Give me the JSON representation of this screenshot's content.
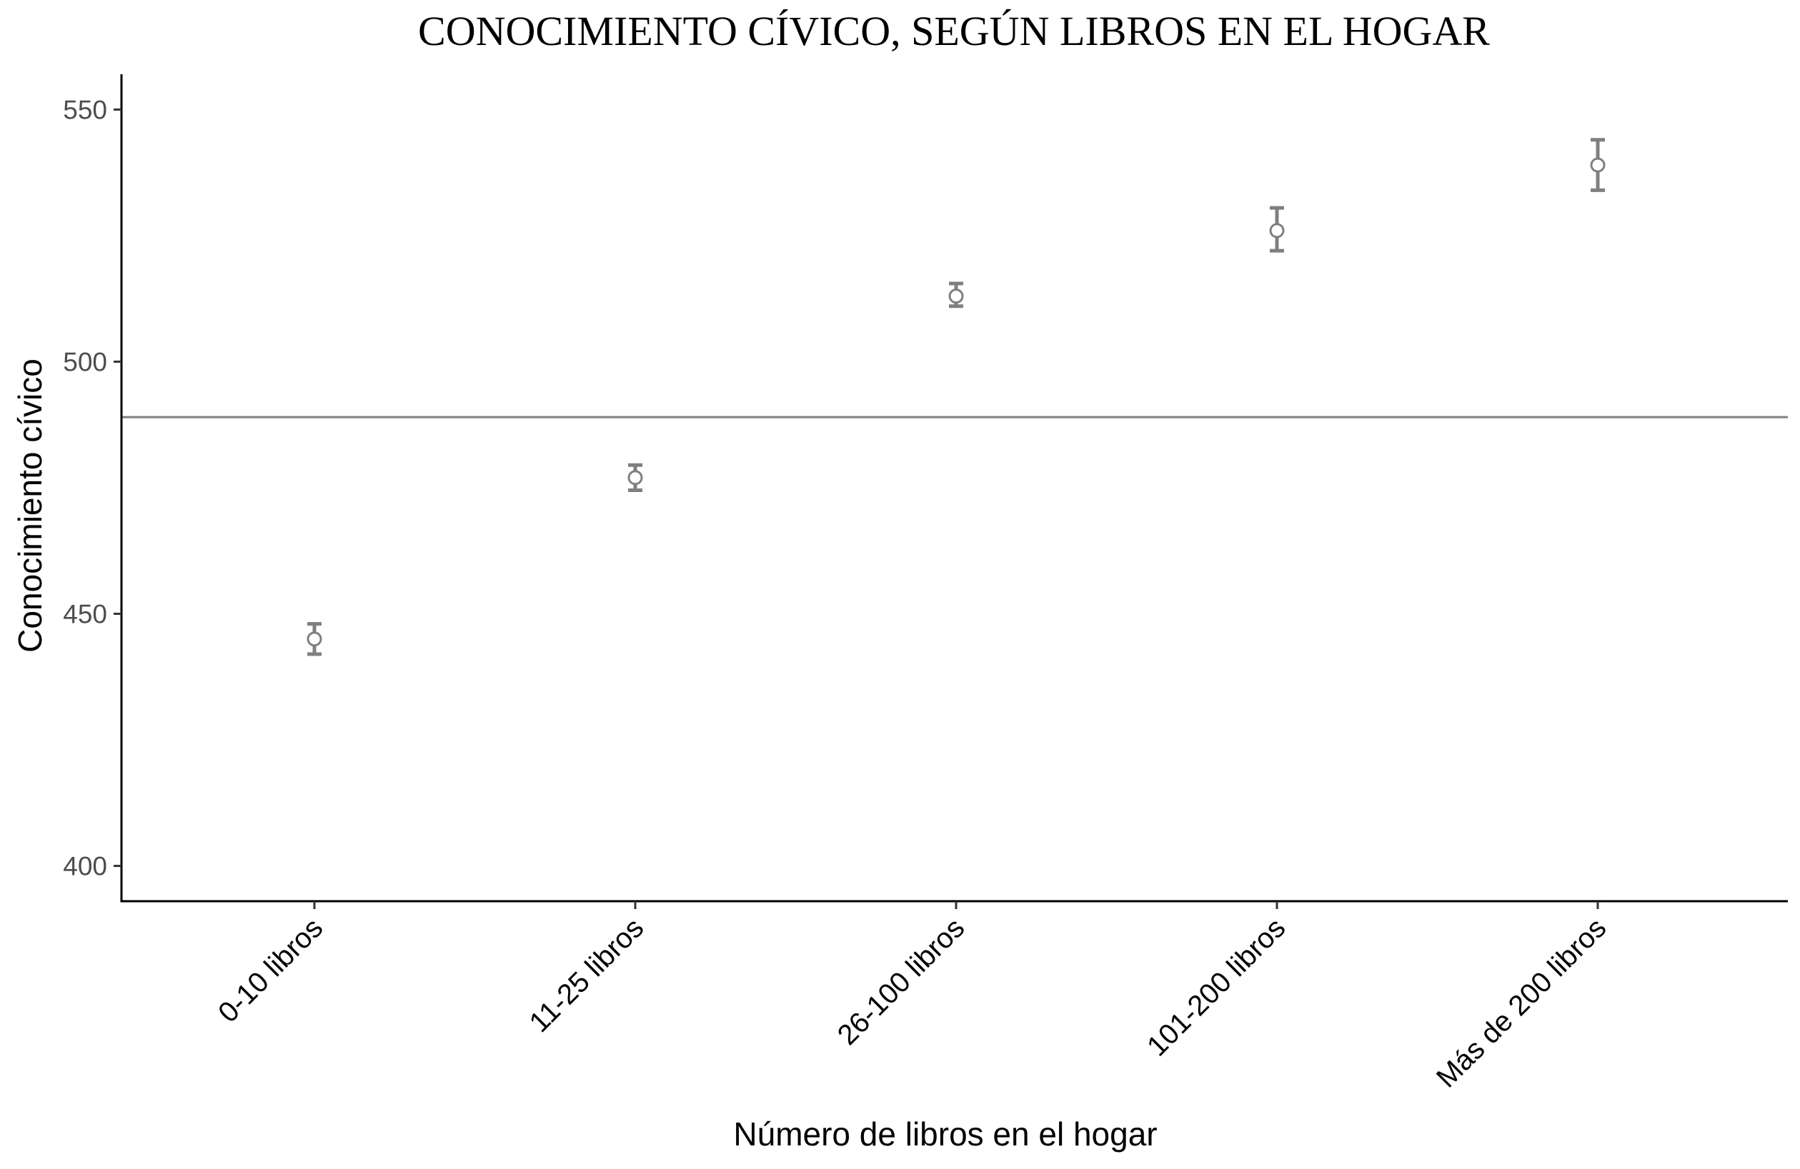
{
  "chart_data": {
    "type": "scatter",
    "title": "CONOCIMIENTO CÍVICO, SEGÚN LIBROS EN EL HOGAR",
    "xlabel": "Número de libros en el hogar",
    "ylabel": "Conocimiento cívico",
    "categories": [
      "0-10 libros",
      "11-25 libros",
      "26-100 libros",
      "101-200 libros",
      "Más de 200 libros"
    ],
    "series": [
      {
        "values": [
          445,
          477,
          513,
          526,
          539
        ],
        "ci_lower": [
          442,
          474.5,
          511,
          522,
          534
        ],
        "ci_upper": [
          448,
          479.5,
          515.5,
          530.5,
          544
        ]
      }
    ],
    "reference_line": 489,
    "yticks": [
      400,
      450,
      500,
      550
    ],
    "ylim": [
      393,
      557
    ],
    "grid": false,
    "legend": "none",
    "colors": {
      "marker": "#7f7f7f",
      "errorbar": "#7f7f7f",
      "reference_line": "#7f7f7f",
      "axis": "#000000"
    }
  }
}
